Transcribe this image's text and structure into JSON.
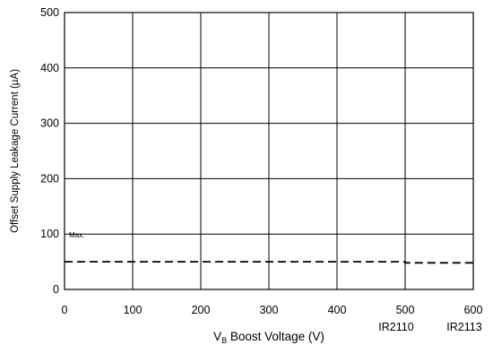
{
  "chart_data": {
    "type": "line",
    "xlabel_main": "V",
    "xlabel_sub": "B",
    "xlabel_rest": " Boost Voltage (V)",
    "ylabel": "Offset Supply Leakage Current (µA)",
    "xlim": [
      0,
      600
    ],
    "ylim": [
      0,
      500
    ],
    "x_ticks": [
      0,
      100,
      200,
      300,
      400,
      500,
      600
    ],
    "y_ticks": [
      0,
      100,
      200,
      300,
      400,
      500
    ],
    "part_labels": [
      {
        "x": 500,
        "text": "IR2110"
      },
      {
        "x": 600,
        "text": "IR2113"
      }
    ],
    "grid": true,
    "series": [
      {
        "name": "Max.",
        "style": "dashed",
        "color": "#000000",
        "x": [
          0,
          500,
          500,
          600
        ],
        "y": [
          50,
          50,
          48,
          48
        ]
      }
    ]
  }
}
